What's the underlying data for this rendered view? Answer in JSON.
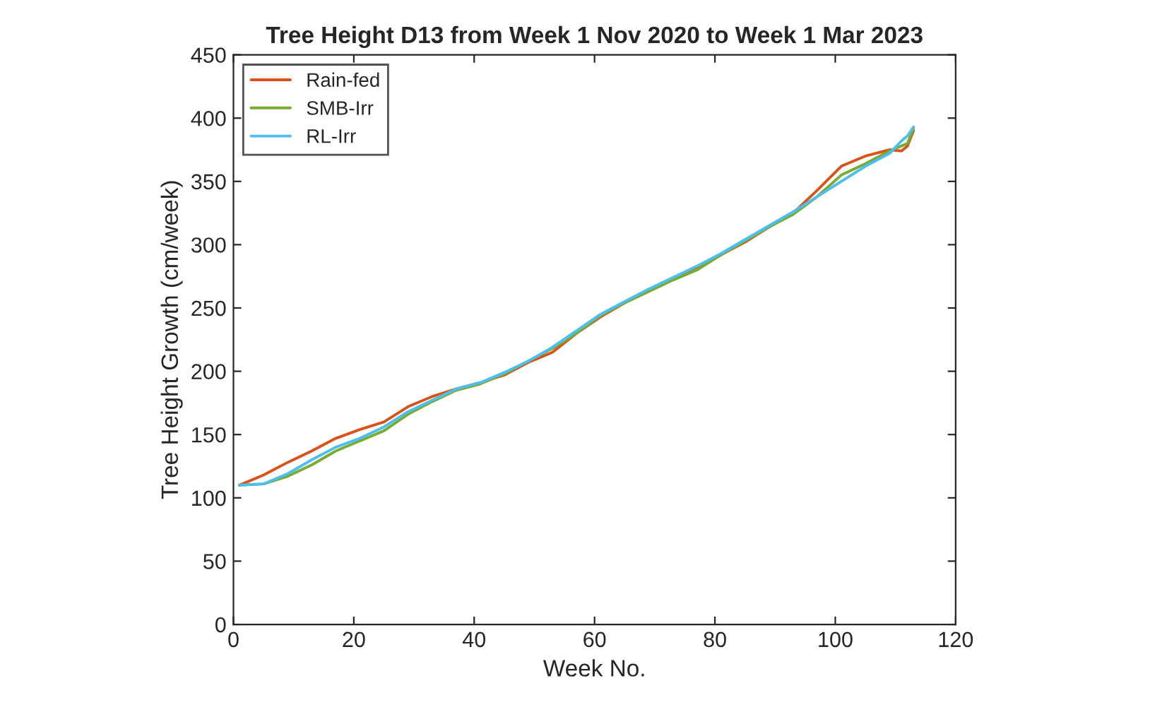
{
  "chart_data": {
    "type": "line",
    "title": "Tree Height D13 from Week 1 Nov 2020 to Week 1 Mar 2023",
    "xlabel": "Week No.",
    "ylabel": "Tree Height Growth (cm/week)",
    "x": [
      1,
      5,
      9,
      13,
      17,
      21,
      25,
      29,
      33,
      37,
      41,
      45,
      49,
      53,
      57,
      61,
      65,
      69,
      73,
      77,
      81,
      85,
      89,
      93,
      97,
      101,
      105,
      109,
      111,
      112,
      113
    ],
    "series": [
      {
        "name": "Rain-fed",
        "color": "#d95319",
        "values": [
          110,
          118,
          128,
          137,
          147,
          154,
          160,
          172,
          180,
          186,
          191,
          197,
          207,
          215,
          230,
          243,
          254,
          264,
          273,
          281,
          292,
          302,
          314,
          325,
          343,
          362,
          370,
          375,
          374,
          378,
          390
        ]
      },
      {
        "name": "SMB-Irr",
        "color": "#77ac30",
        "values": [
          110,
          111,
          117,
          126,
          137,
          145,
          153,
          166,
          176,
          185,
          190,
          198,
          208,
          218,
          230,
          244,
          254,
          263,
          272,
          280,
          292,
          303,
          314,
          324,
          338,
          355,
          364,
          374,
          378,
          380,
          392
        ]
      },
      {
        "name": "RL-Irr",
        "color": "#4dbeee",
        "values": [
          110,
          111,
          119,
          130,
          140,
          147,
          156,
          168,
          177,
          186,
          191,
          199,
          208,
          219,
          232,
          245,
          255,
          265,
          274,
          283,
          293,
          304,
          315,
          326,
          338,
          350,
          362,
          372,
          382,
          386,
          393
        ]
      }
    ],
    "xlim": [
      0,
      120
    ],
    "xticks": [
      0,
      20,
      40,
      60,
      80,
      100,
      120
    ],
    "ylim": [
      0,
      450
    ],
    "yticks": [
      0,
      50,
      100,
      150,
      200,
      250,
      300,
      350,
      400,
      450
    ],
    "grid": false,
    "legend": "top left",
    "line_style": "solid",
    "marker": "none"
  }
}
